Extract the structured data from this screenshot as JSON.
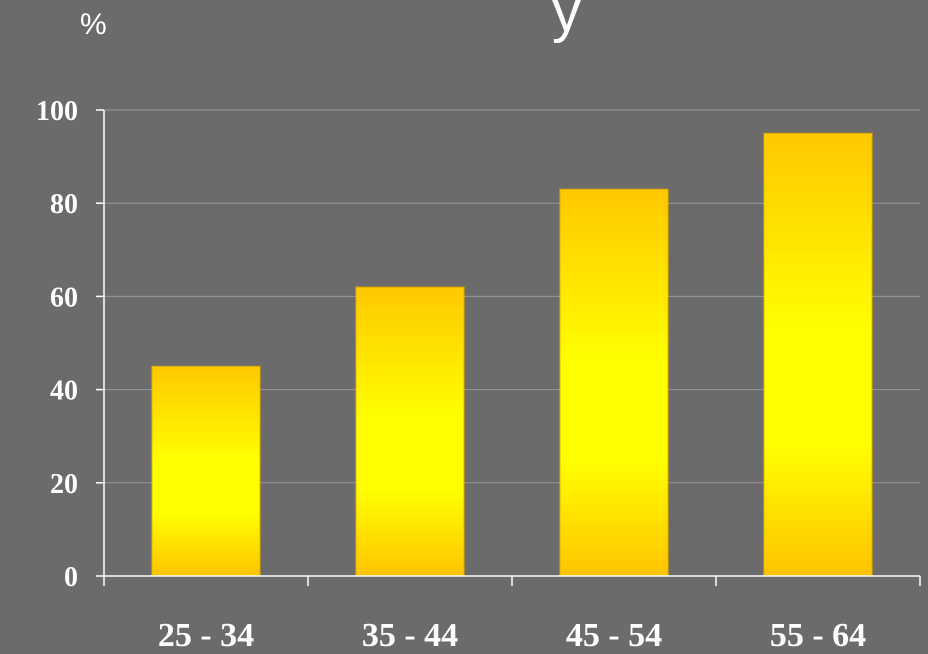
{
  "header": {
    "title_fragment": "y",
    "unit": "%"
  },
  "chart_data": {
    "type": "bar",
    "title": "",
    "xlabel": "",
    "ylabel": "%",
    "categories": [
      "25 - 34",
      "35 - 44",
      "45 - 54",
      "55 - 64"
    ],
    "values": [
      45,
      62,
      83,
      95
    ],
    "ylim": [
      0,
      100
    ],
    "yticks": [
      0,
      20,
      40,
      60,
      80,
      100
    ],
    "grid": true,
    "legend": "none",
    "colors": {
      "background": "#6b6b6b",
      "bar_center": "#ffff00",
      "bar_edge": "#ffcc00",
      "grid": "#9a9a9a",
      "axis": "#ffffff",
      "text": "#ffffff"
    }
  }
}
